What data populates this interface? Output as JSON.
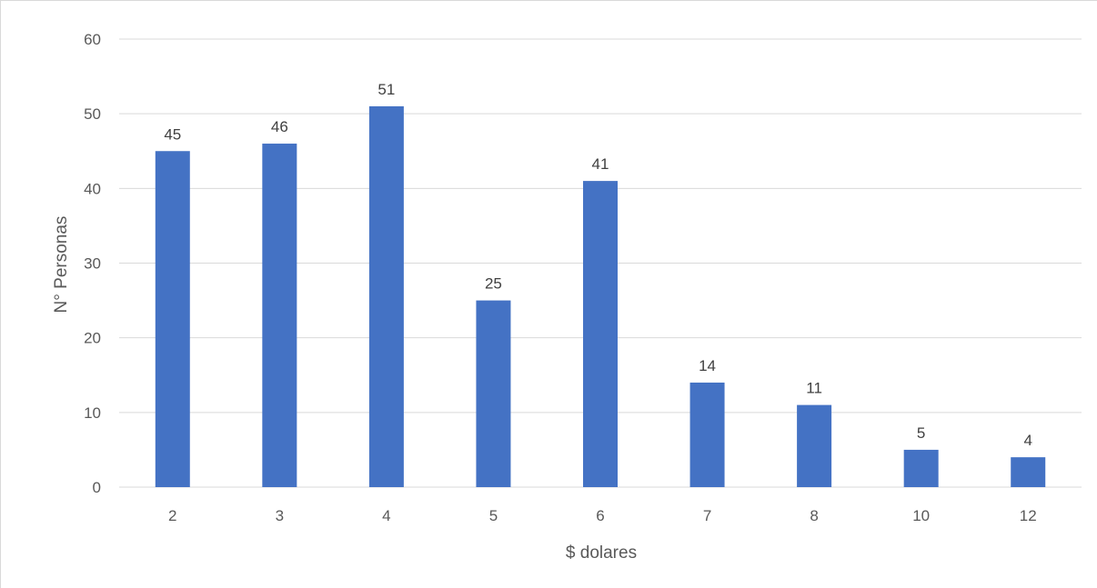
{
  "chart_data": {
    "type": "bar",
    "title": "",
    "xlabel": "$ dolares",
    "ylabel": "N° Personas",
    "categories": [
      "2",
      "3",
      "4",
      "5",
      "6",
      "7",
      "8",
      "10",
      "12"
    ],
    "values": [
      45,
      46,
      51,
      25,
      41,
      14,
      11,
      5,
      4
    ],
    "data_labels": [
      "45",
      "46",
      "51",
      "25",
      "41",
      "14",
      "11",
      "5",
      "4"
    ],
    "ylim": [
      0,
      60
    ],
    "yticks": [
      "0",
      "10",
      "20",
      "30",
      "40",
      "50",
      "60"
    ],
    "grid": true,
    "legend": "none",
    "bar_color": "#4472C4",
    "grid_color": "#d9d9d9"
  }
}
